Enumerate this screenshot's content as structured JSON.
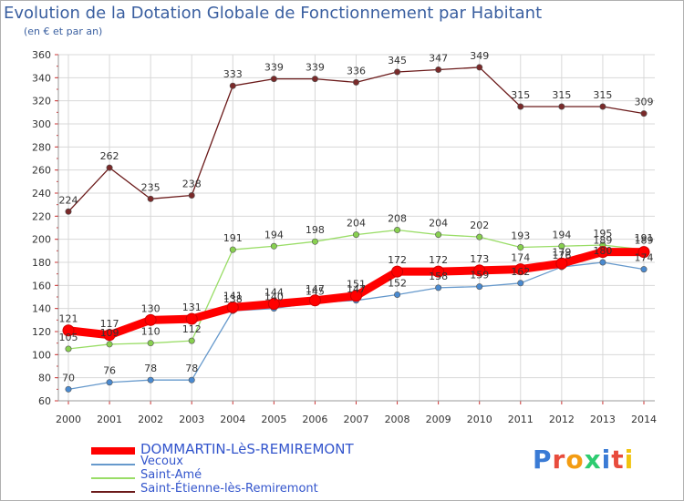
{
  "chart_data": {
    "type": "line",
    "title": "Evolution de la Dotation Globale de Fonctionnement par Habitant",
    "subtitle": "(en € et par an)",
    "categories": [
      "2000",
      "2001",
      "2002",
      "2003",
      "2004",
      "2005",
      "2006",
      "2007",
      "2008",
      "2009",
      "2010",
      "2011",
      "2012",
      "2013",
      "2014"
    ],
    "ylim": [
      60,
      360
    ],
    "yticks": [
      60,
      80,
      100,
      120,
      140,
      160,
      180,
      200,
      220,
      240,
      260,
      280,
      300,
      320,
      340,
      360
    ],
    "grid": true,
    "series": [
      {
        "name": "Saint-Étienne-lès-Remiremont",
        "color": "#6b1a1a",
        "marker": "#7a2a2a",
        "width": 1.3,
        "values": [
          224,
          262,
          235,
          238,
          333,
          339,
          339,
          336,
          345,
          347,
          349,
          315,
          315,
          315,
          309
        ],
        "labels": [
          "224",
          "262",
          "235",
          "238",
          "333",
          "339",
          "339",
          "336",
          "345",
          "347",
          "349",
          "315",
          "315",
          "315",
          "309"
        ]
      },
      {
        "name": "Saint-Amé",
        "color": "#99dd66",
        "marker": "#88d050",
        "width": 1.3,
        "values": [
          105,
          109,
          110,
          112,
          191,
          194,
          198,
          204,
          208,
          204,
          202,
          193,
          194,
          195,
          191
        ],
        "labels": [
          "105",
          "109",
          "110",
          "112",
          "191",
          "194",
          "198",
          "204",
          "208",
          "204",
          "202",
          "193",
          "194",
          "195",
          "191"
        ]
      },
      {
        "name": "Vecoux",
        "color": "#6699cc",
        "marker": "#4a8ad0",
        "width": 1.3,
        "values": [
          70,
          76,
          78,
          78,
          138,
          140,
          145,
          147,
          152,
          158,
          159,
          162,
          176,
          180,
          174
        ],
        "labels": [
          "70",
          "76",
          "78",
          "78",
          "138",
          "140",
          "145",
          "147",
          "152",
          "158",
          "159",
          "162",
          "176",
          "180",
          "174"
        ]
      },
      {
        "name": "DOMMARTIN-LèS-REMIREMONT",
        "color": "#ff0000",
        "marker": "#ff0000",
        "width": 9,
        "values": [
          121,
          117,
          130,
          131,
          141,
          144,
          147,
          151,
          172,
          172,
          173,
          174,
          179,
          189,
          189
        ],
        "labels": [
          "121",
          "117",
          "130",
          "131",
          "141",
          "144",
          "147",
          "151",
          "172",
          "172",
          "173",
          "174",
          "179",
          "189",
          "189"
        ]
      }
    ]
  },
  "legend": [
    {
      "name": "DOMMARTIN-LèS-REMIREMONT",
      "color": "#ff0000",
      "text_color": "#3355cc"
    },
    {
      "name": "Vecoux",
      "color": "#6699cc",
      "text_color": "#3355cc"
    },
    {
      "name": "Saint-Amé",
      "color": "#99dd66",
      "text_color": "#3355cc"
    },
    {
      "name": "Saint-Étienne-lès-Remiremont",
      "color": "#6b1a1a",
      "text_color": "#3355cc"
    }
  ],
  "logo": {
    "text": "Proxiti",
    "letters": [
      "P",
      "r",
      "o",
      "x",
      "i",
      "t",
      "i"
    ],
    "colors": [
      "#3a7bd5",
      "#e84c3d",
      "#f39c12",
      "#2ecc71",
      "#3a7bd5",
      "#e84c3d",
      "#f1c40f"
    ]
  }
}
